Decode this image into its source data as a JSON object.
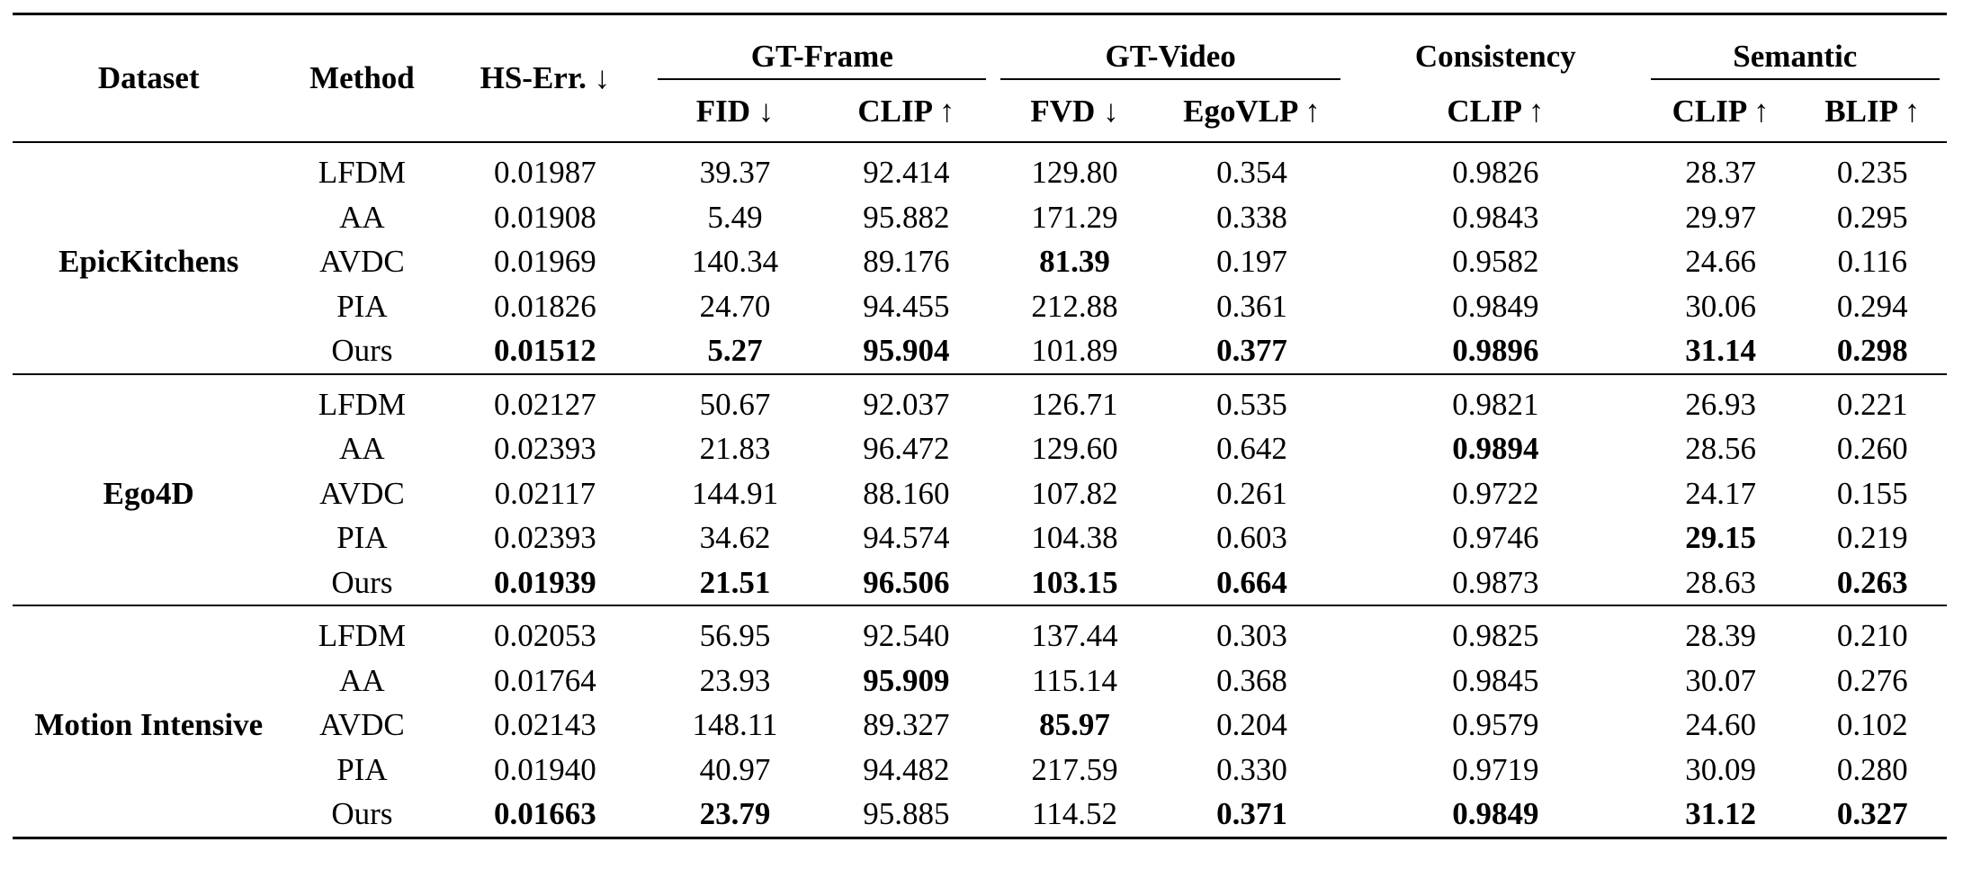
{
  "header": {
    "dataset": "Dataset",
    "method": "Method",
    "hs_err": "HS-Err. ↓",
    "groups": {
      "gt_frame": "GT-Frame",
      "gt_video": "GT-Video",
      "consistency": "Consistency",
      "semantic": "Semantic"
    },
    "sub": {
      "fid": "FID ↓",
      "clip_frame": "CLIP ↑",
      "fvd": "FVD ↓",
      "egovlp": "EgoVLP ↑",
      "clip_consistency": "CLIP ↑",
      "clip_semantic": "CLIP ↑",
      "blip": "BLIP ↑"
    }
  },
  "sections": [
    {
      "dataset": "EpicKitchens",
      "rows": [
        {
          "method": "LFDM",
          "values": [
            "0.01987",
            "39.37",
            "92.414",
            "129.80",
            "0.354",
            "0.9826",
            "28.37",
            "0.235"
          ],
          "bold": []
        },
        {
          "method": "AA",
          "values": [
            "0.01908",
            "5.49",
            "95.882",
            "171.29",
            "0.338",
            "0.9843",
            "29.97",
            "0.295"
          ],
          "bold": []
        },
        {
          "method": "AVDC",
          "values": [
            "0.01969",
            "140.34",
            "89.176",
            "81.39",
            "0.197",
            "0.9582",
            "24.66",
            "0.116"
          ],
          "bold": [
            3
          ]
        },
        {
          "method": "PIA",
          "values": [
            "0.01826",
            "24.70",
            "94.455",
            "212.88",
            "0.361",
            "0.9849",
            "30.06",
            "0.294"
          ],
          "bold": []
        },
        {
          "method": "Ours",
          "values": [
            "0.01512",
            "5.27",
            "95.904",
            "101.89",
            "0.377",
            "0.9896",
            "31.14",
            "0.298"
          ],
          "bold": [
            0,
            1,
            2,
            4,
            5,
            6,
            7
          ]
        }
      ]
    },
    {
      "dataset": "Ego4D",
      "rows": [
        {
          "method": "LFDM",
          "values": [
            "0.02127",
            "50.67",
            "92.037",
            "126.71",
            "0.535",
            "0.9821",
            "26.93",
            "0.221"
          ],
          "bold": []
        },
        {
          "method": "AA",
          "values": [
            "0.02393",
            "21.83",
            "96.472",
            "129.60",
            "0.642",
            "0.9894",
            "28.56",
            "0.260"
          ],
          "bold": [
            5
          ]
        },
        {
          "method": "AVDC",
          "values": [
            "0.02117",
            "144.91",
            "88.160",
            "107.82",
            "0.261",
            "0.9722",
            "24.17",
            "0.155"
          ],
          "bold": []
        },
        {
          "method": "PIA",
          "values": [
            "0.02393",
            "34.62",
            "94.574",
            "104.38",
            "0.603",
            "0.9746",
            "29.15",
            "0.219"
          ],
          "bold": [
            6
          ]
        },
        {
          "method": "Ours",
          "values": [
            "0.01939",
            "21.51",
            "96.506",
            "103.15",
            "0.664",
            "0.9873",
            "28.63",
            "0.263"
          ],
          "bold": [
            0,
            1,
            2,
            3,
            4,
            7
          ]
        }
      ]
    },
    {
      "dataset": "Motion Intensive",
      "rows": [
        {
          "method": "LFDM",
          "values": [
            "0.02053",
            "56.95",
            "92.540",
            "137.44",
            "0.303",
            "0.9825",
            "28.39",
            "0.210"
          ],
          "bold": []
        },
        {
          "method": "AA",
          "values": [
            "0.01764",
            "23.93",
            "95.909",
            "115.14",
            "0.368",
            "0.9845",
            "30.07",
            "0.276"
          ],
          "bold": [
            2
          ]
        },
        {
          "method": "AVDC",
          "values": [
            "0.02143",
            "148.11",
            "89.327",
            "85.97",
            "0.204",
            "0.9579",
            "24.60",
            "0.102"
          ],
          "bold": [
            3
          ]
        },
        {
          "method": "PIA",
          "values": [
            "0.01940",
            "40.97",
            "94.482",
            "217.59",
            "0.330",
            "0.9719",
            "30.09",
            "0.280"
          ],
          "bold": []
        },
        {
          "method": "Ours",
          "values": [
            "0.01663",
            "23.79",
            "95.885",
            "114.52",
            "0.371",
            "0.9849",
            "31.12",
            "0.327"
          ],
          "bold": [
            0,
            1,
            4,
            5,
            6,
            7
          ]
        }
      ]
    }
  ]
}
